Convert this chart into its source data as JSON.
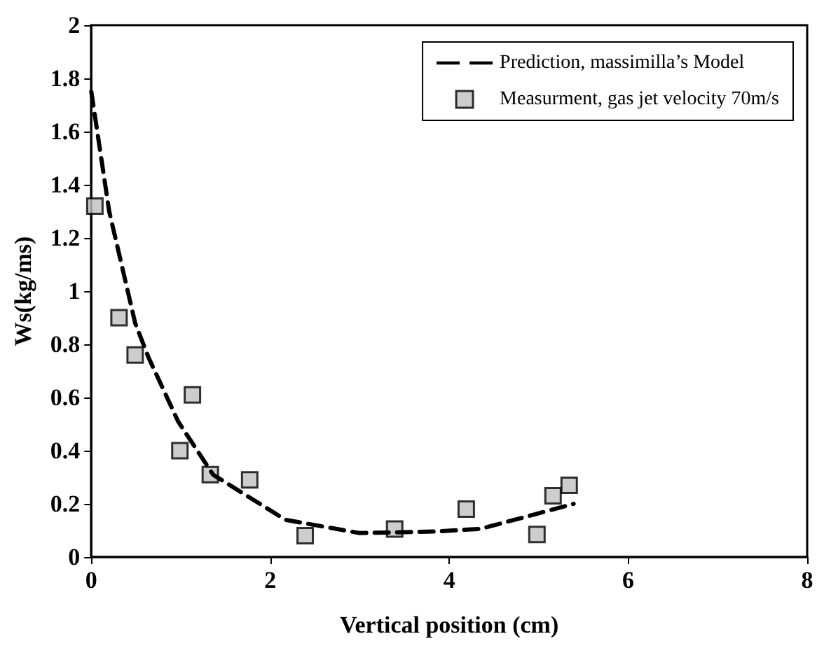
{
  "chart_data": {
    "type": "scatter",
    "xlabel": "Vertical position (cm)",
    "ylabel": "Ws(kg/ms)",
    "xlim": [
      0,
      8
    ],
    "xticks": [
      0,
      2,
      4,
      6,
      8
    ],
    "ylim": [
      0,
      2
    ],
    "yticks": [
      0,
      0.2,
      0.4,
      0.6,
      0.8,
      1,
      1.2,
      1.4,
      1.6,
      1.8,
      2
    ],
    "grid": false,
    "legend": "top right",
    "series": [
      {
        "name": "Prediction, massimilla’s Model",
        "type": "line",
        "line_style": "dashed",
        "marker": "none",
        "color": "#000000",
        "x": [
          0,
          0.2,
          0.49,
          0.64,
          0.97,
          1.36,
          1.74,
          2.17,
          3.0,
          3.85,
          4.35,
          4.84,
          5.39
        ],
        "values": [
          1.75,
          1.3,
          0.88,
          0.75,
          0.51,
          0.31,
          0.23,
          0.14,
          0.09,
          0.096,
          0.106,
          0.15,
          0.2
        ]
      },
      {
        "name": "Measurment, gas jet velocity 70m/s",
        "marker": "square",
        "color": "#c0c0c0",
        "x": [
          0.04,
          0.31,
          0.49,
          1.13,
          0.99,
          1.33,
          1.77,
          2.39,
          3.39,
          4.19,
          4.98,
          5.16,
          5.34
        ],
        "values": [
          1.32,
          0.9,
          0.76,
          0.61,
          0.4,
          0.31,
          0.29,
          0.08,
          0.105,
          0.18,
          0.085,
          0.23,
          0.27
        ]
      }
    ]
  }
}
